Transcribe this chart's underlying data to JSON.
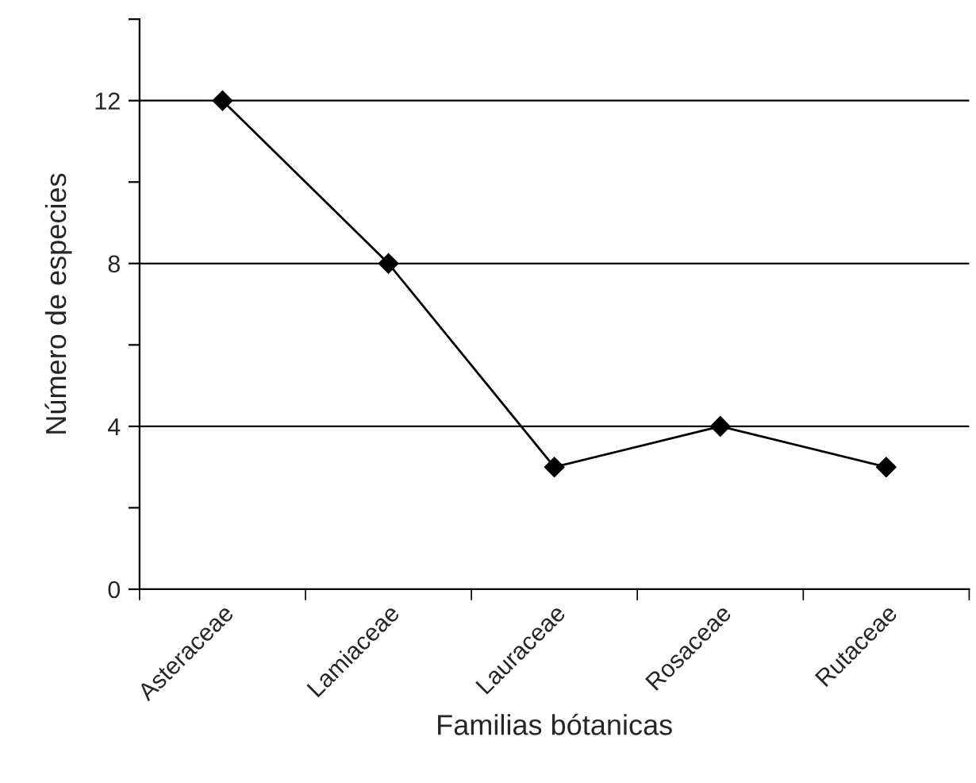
{
  "chart_data": {
    "type": "line",
    "xlabel": "Familias bótanicas",
    "ylabel": "Número de especies",
    "categories": [
      "Asteraceae",
      "Lamiaceae",
      "Lauraceae",
      "Rosaceae",
      "Rutaceae"
    ],
    "series": [
      {
        "color": "#000000",
        "values": [
          12,
          8,
          3,
          4,
          3
        ]
      }
    ],
    "ylim": [
      0,
      14
    ],
    "yticks": [
      0,
      {
        "value": 2,
        "label": null
      },
      4,
      {
        "value": 6,
        "label": null
      },
      8,
      {
        "value": 10,
        "label": null
      },
      12,
      {
        "value": 14,
        "label": null
      }
    ],
    "grid": "y",
    "marker": "diamond",
    "line_style": "solid",
    "legend": false
  }
}
